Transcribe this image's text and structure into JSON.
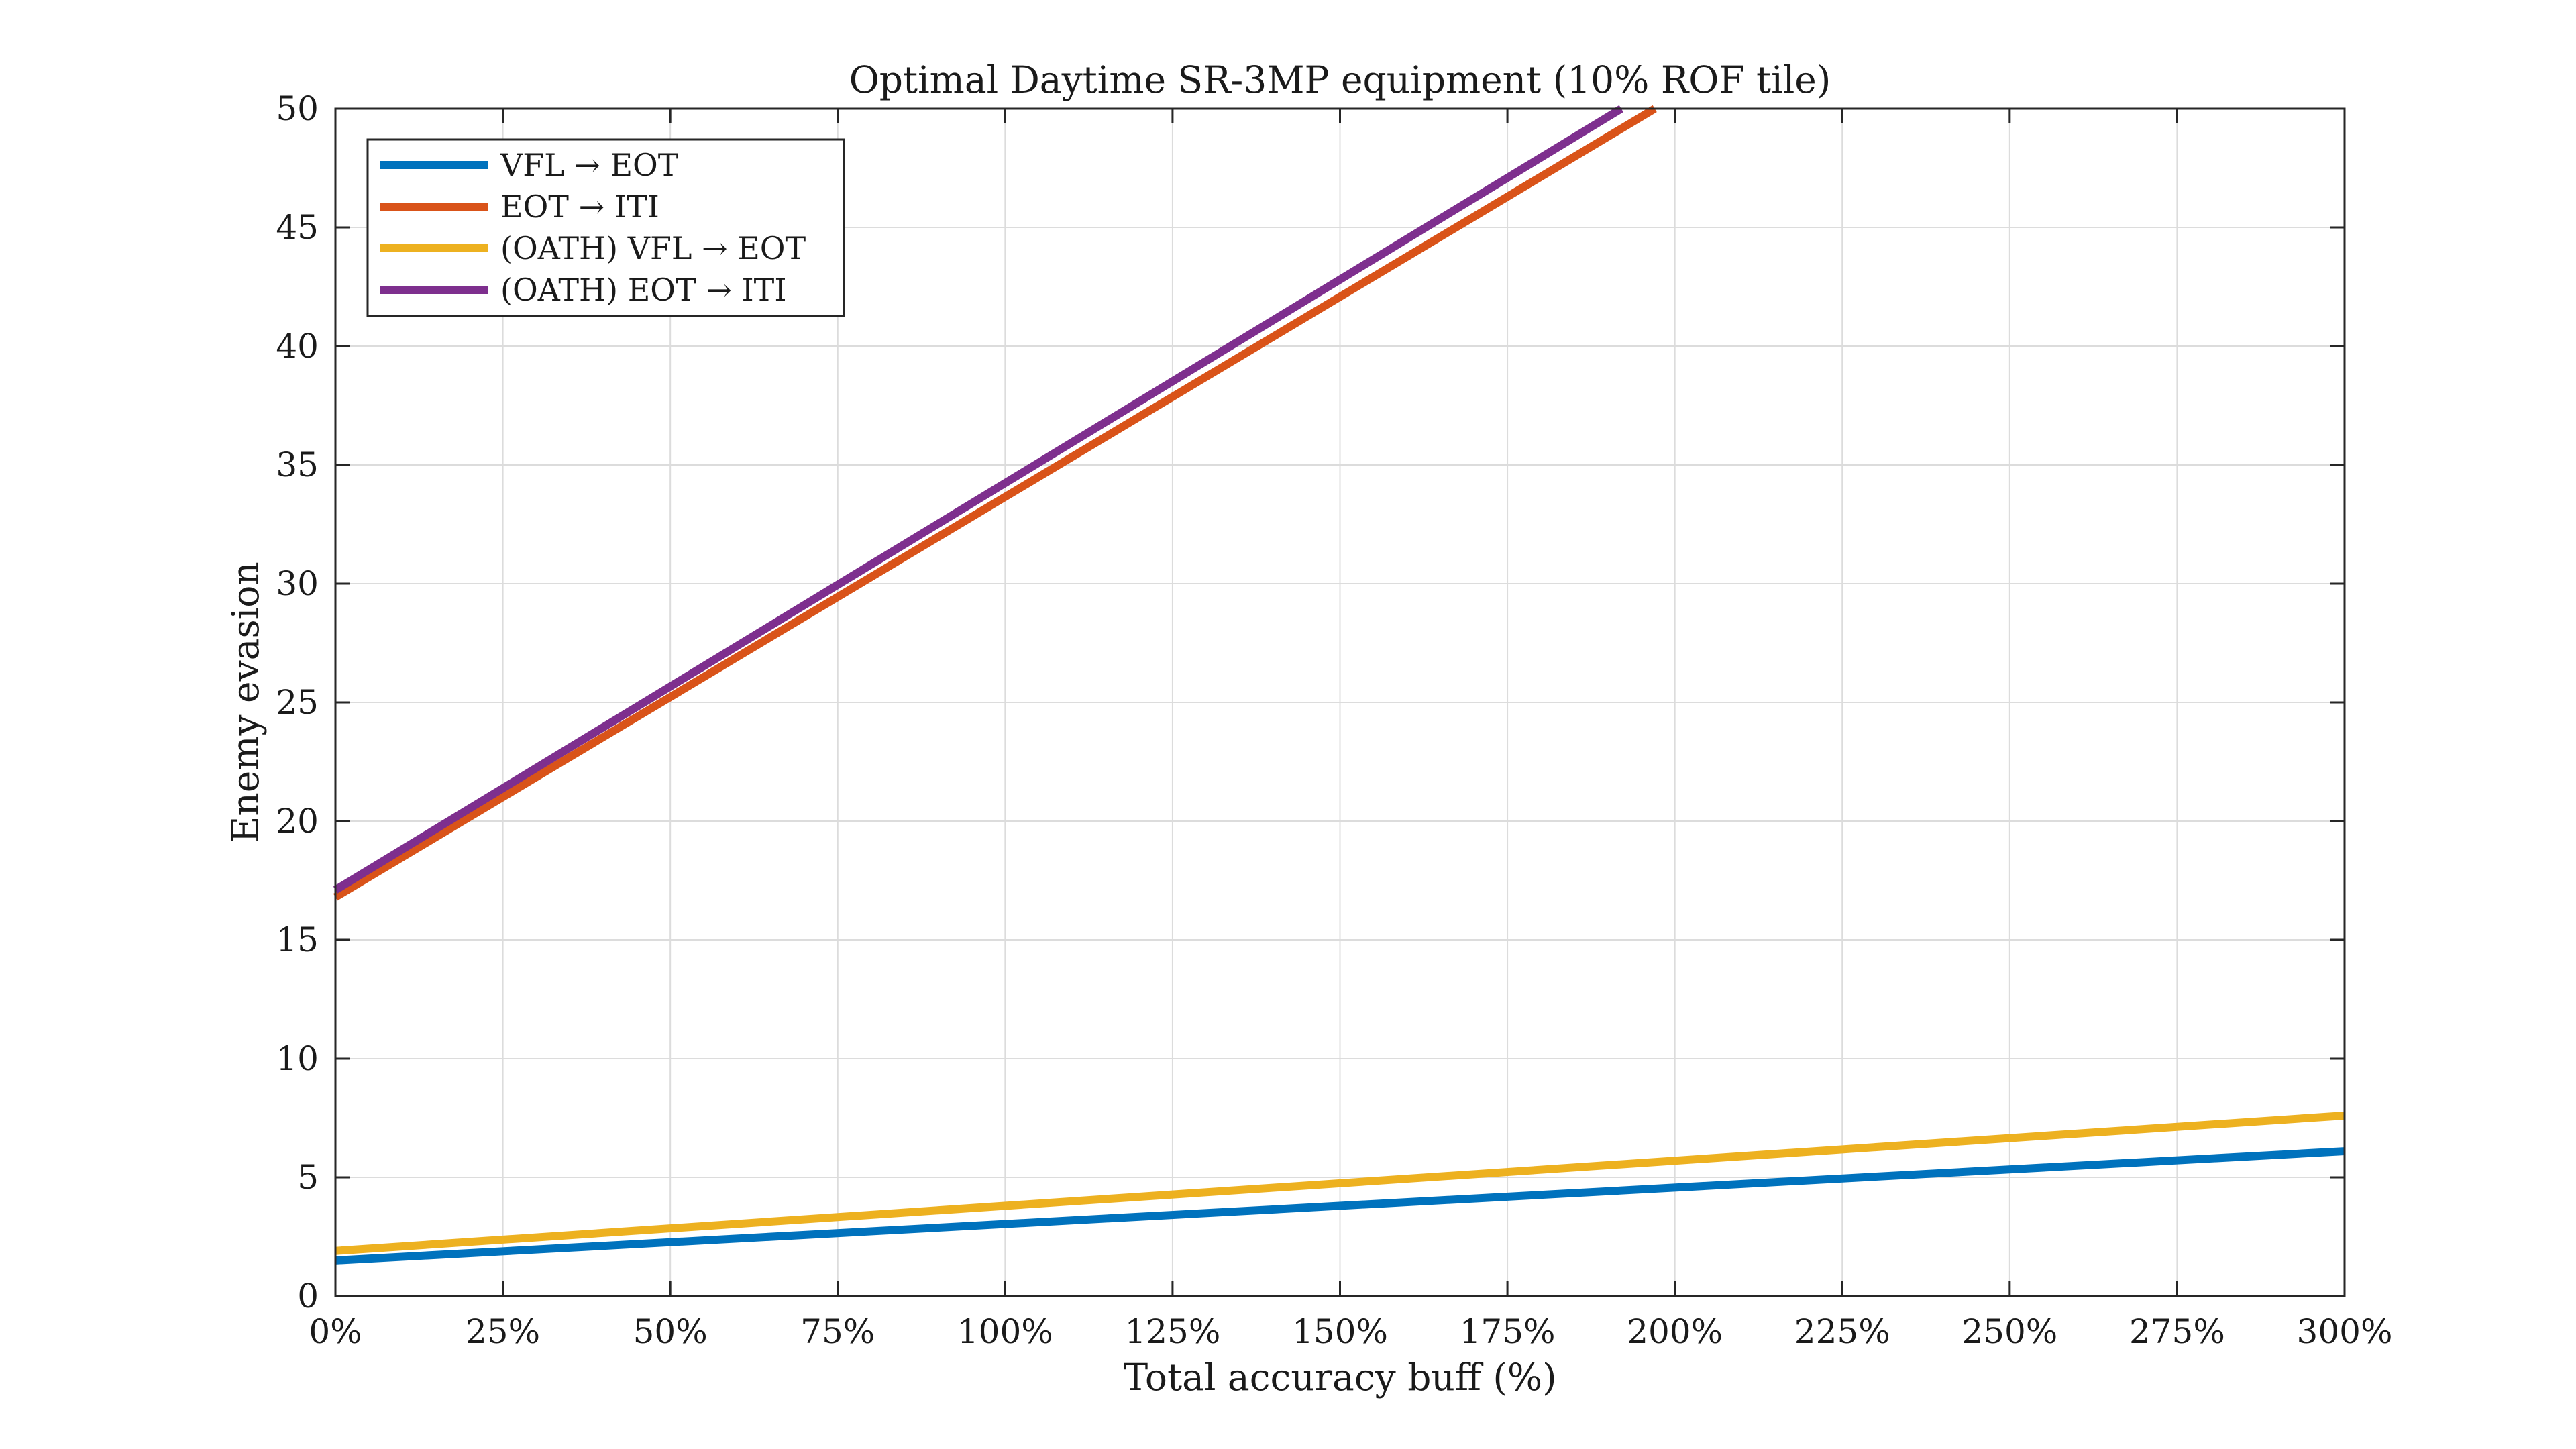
{
  "chart_data": {
    "type": "line",
    "title": "Optimal Daytime SR-3MP equipment (10% ROF tile)",
    "xlabel": "Total accuracy buff (%)",
    "ylabel": "Enemy evasion",
    "xlim": [
      0,
      300
    ],
    "ylim": [
      0,
      50
    ],
    "xticks": [
      0,
      25,
      50,
      75,
      100,
      125,
      150,
      175,
      200,
      225,
      250,
      275,
      300
    ],
    "xtick_labels": [
      "0%",
      "25%",
      "50%",
      "75%",
      "100%",
      "125%",
      "150%",
      "175%",
      "200%",
      "225%",
      "250%",
      "275%",
      "300%"
    ],
    "yticks": [
      0,
      5,
      10,
      15,
      20,
      25,
      30,
      35,
      40,
      45,
      50
    ],
    "ytick_labels": [
      "0",
      "5",
      "10",
      "15",
      "20",
      "25",
      "30",
      "35",
      "40",
      "45",
      "50"
    ],
    "grid": true,
    "legend_position": "top-left",
    "series": [
      {
        "name": "VFL → EOT",
        "color": "#0072BD",
        "x": [
          0,
          300
        ],
        "y": [
          1.5,
          6.1
        ]
      },
      {
        "name": "EOT → ITI",
        "color": "#D95319",
        "x": [
          0,
          197
        ],
        "y": [
          16.8,
          50
        ]
      },
      {
        "name": "(OATH) VFL → EOT",
        "color": "#EDB120",
        "x": [
          0,
          300
        ],
        "y": [
          1.9,
          7.6
        ]
      },
      {
        "name": "(OATH) EOT → ITI",
        "color": "#7E2F8E",
        "x": [
          0,
          192
        ],
        "y": [
          17.1,
          50
        ]
      }
    ]
  }
}
